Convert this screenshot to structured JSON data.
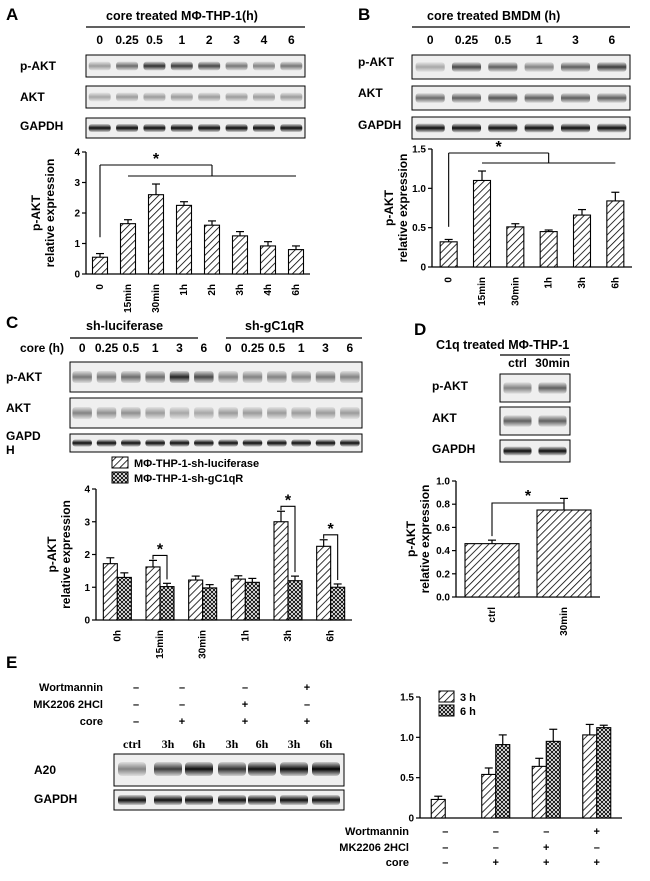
{
  "figure": {
    "panels": {
      "A": {
        "label": "A",
        "title": "core treated MΦ-THP-1(h)",
        "lanes": [
          "0",
          "0.25",
          "0.5",
          "1",
          "2",
          "3",
          "4",
          "6"
        ],
        "rows": [
          "p-AKT",
          "AKT",
          "GAPDH"
        ]
      },
      "B": {
        "label": "B",
        "title": "core treated BMDM (h)",
        "lanes": [
          "0",
          "0.25",
          "0.5",
          "1",
          "3",
          "6"
        ],
        "rows": [
          "p-AKT",
          "AKT",
          "GAPDH"
        ]
      },
      "C": {
        "label": "C",
        "group1": "sh-luciferase",
        "group2": "sh-gC1qR",
        "lane_label": "core  (h)",
        "lanes": [
          "0",
          "0.25",
          "0.5",
          "1",
          "3",
          "6",
          "0",
          "0.25",
          "0.5",
          "1",
          "3",
          "6"
        ],
        "rows": [
          "p-AKT",
          "AKT",
          "GAPD\nH"
        ]
      },
      "D": {
        "label": "D",
        "title": "C1q treated MΦ-THP-1",
        "lanes": [
          "ctrl",
          "30min"
        ],
        "rows": [
          "p-AKT",
          "AKT",
          "GAPDH"
        ]
      },
      "E": {
        "label": "E",
        "treatments": [
          {
            "name": "Wortmannin",
            "signs": [
              "–",
              "–",
              "–",
              "+"
            ]
          },
          {
            "name": "MK2206 2HCl",
            "signs": [
              "–",
              "–",
              "+",
              "–"
            ]
          },
          {
            "name": "core",
            "signs": [
              "–",
              "+",
              "+",
              "+"
            ]
          }
        ],
        "lanes": [
          "ctrl",
          "3h",
          "6h",
          "3h",
          "6h",
          "3h",
          "6h"
        ],
        "rows": [
          "A20",
          "GAPDH"
        ],
        "bar_treatments": [
          {
            "name": "Wortmannin",
            "signs": [
              "–",
              "–",
              "–",
              "+"
            ]
          },
          {
            "name": "MK2206 2HCl",
            "signs": [
              "–",
              "–",
              "+",
              "–"
            ]
          },
          {
            "name": "core",
            "signs": [
              "–",
              "+",
              "+",
              "+"
            ]
          }
        ]
      }
    }
  },
  "chart_data": [
    {
      "id": "A",
      "type": "bar",
      "title": "",
      "ylabel": "p-AKT\nrelative expression",
      "xlabel": "",
      "categories": [
        "0",
        "15min",
        "30min",
        "1h",
        "2h",
        "3h",
        "4h",
        "6h"
      ],
      "values": [
        0.55,
        1.65,
        2.6,
        2.25,
        1.6,
        1.25,
        0.92,
        0.8
      ],
      "errors": [
        0.12,
        0.13,
        0.35,
        0.12,
        0.14,
        0.14,
        0.14,
        0.12
      ],
      "ylim": [
        0,
        4
      ],
      "yticks": [
        "0",
        "1",
        "2",
        "3",
        "4"
      ],
      "significance": "*"
    },
    {
      "id": "B",
      "type": "bar",
      "title": "",
      "ylabel": "p-AKT\nrelative expression",
      "xlabel": "",
      "categories": [
        "0",
        "15min",
        "30min",
        "1h",
        "3h",
        "6h"
      ],
      "values": [
        0.32,
        1.1,
        0.51,
        0.45,
        0.66,
        0.84
      ],
      "errors": [
        0.03,
        0.12,
        0.04,
        0.02,
        0.07,
        0.11
      ],
      "ylim": [
        0,
        1.5
      ],
      "yticks": [
        "0",
        "0.5",
        "1.0",
        "1.5"
      ],
      "significance": "*"
    },
    {
      "id": "C",
      "type": "bar",
      "title": "",
      "ylabel": "p-AKT\nrelative expression",
      "xlabel": "",
      "categories": [
        "0h",
        "15min",
        "30min",
        "1h",
        "3h",
        "6h"
      ],
      "series": [
        {
          "name": "MΦ-THP-1-sh-luciferase",
          "pattern": "hatch",
          "values": [
            1.72,
            1.62,
            1.22,
            1.25,
            3.0,
            2.25
          ],
          "errors": [
            0.18,
            0.2,
            0.12,
            0.1,
            0.32,
            0.2
          ]
        },
        {
          "name": "MΦ-THP-1-sh-gC1qR",
          "pattern": "cross",
          "values": [
            1.3,
            1.02,
            0.98,
            1.15,
            1.2,
            1.0
          ],
          "errors": [
            0.14,
            0.1,
            0.1,
            0.12,
            0.14,
            0.1
          ]
        }
      ],
      "ylim": [
        0,
        4
      ],
      "yticks": [
        "0",
        "1",
        "2",
        "3",
        "4"
      ],
      "significance": [
        "*",
        "*",
        "*"
      ]
    },
    {
      "id": "D",
      "type": "bar",
      "title": "",
      "ylabel": "p-AKT\nrelative expression",
      "xlabel": "",
      "categories": [
        "ctrl",
        "30min"
      ],
      "values": [
        0.46,
        0.75
      ],
      "errors": [
        0.03,
        0.1
      ],
      "ylim": [
        0,
        1.0
      ],
      "yticks": [
        "0.0",
        "0.2",
        "0.4",
        "0.6",
        "0.8",
        "1.0"
      ],
      "significance": "*"
    },
    {
      "id": "E",
      "type": "bar",
      "title": "",
      "ylabel": "",
      "xlabel": "",
      "categories": [
        "ctrl",
        "core",
        "core+MK2206 2HCl",
        "core+Wortmannin"
      ],
      "series": [
        {
          "name": "3 h",
          "pattern": "hatch",
          "values": [
            0.23,
            0.54,
            0.64,
            1.03
          ],
          "errors": [
            0.04,
            0.08,
            0.1,
            0.13
          ]
        },
        {
          "name": "6 h",
          "pattern": "cross",
          "values": [
            null,
            0.91,
            0.95,
            1.12
          ],
          "errors": [
            null,
            0.12,
            0.15,
            0.03
          ]
        }
      ],
      "ylim": [
        0,
        1.5
      ],
      "yticks": [
        "0",
        "0.5",
        "1.0",
        "1.5"
      ]
    }
  ]
}
